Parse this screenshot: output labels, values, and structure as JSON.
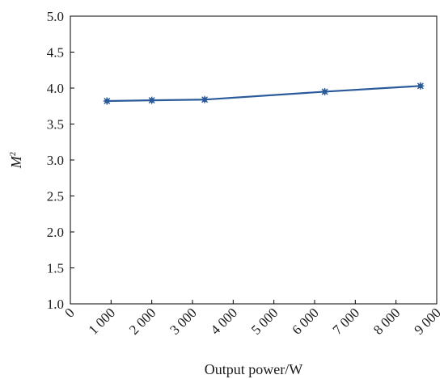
{
  "chart_data": {
    "type": "line",
    "title": "",
    "xlabel": "Output power/W",
    "ylabel_base": "M",
    "ylabel_sup": "2",
    "xlim": [
      0,
      9000
    ],
    "ylim": [
      1.0,
      5.0
    ],
    "x_ticks": [
      0,
      1000,
      2000,
      3000,
      4000,
      5000,
      6000,
      7000,
      8000,
      9000
    ],
    "x_tick_labels": [
      "0",
      "1 000",
      "2 000",
      "3 000",
      "4 000",
      "5 000",
      "6 000",
      "7 000",
      "8 000",
      "9 000"
    ],
    "y_ticks": [
      1.0,
      1.5,
      2.0,
      2.5,
      3.0,
      3.5,
      4.0,
      4.5,
      5.0
    ],
    "y_tick_labels": [
      "1.0",
      "1.5",
      "2.0",
      "2.5",
      "3.0",
      "3.5",
      "4.0",
      "4.5",
      "5.0"
    ],
    "grid": false,
    "series": [
      {
        "color": "#2a5a9a",
        "marker": "asterisk",
        "x": [
          900,
          2000,
          3300,
          6250,
          8600
        ],
        "y": [
          3.82,
          3.83,
          3.84,
          3.95,
          4.03
        ]
      }
    ]
  }
}
